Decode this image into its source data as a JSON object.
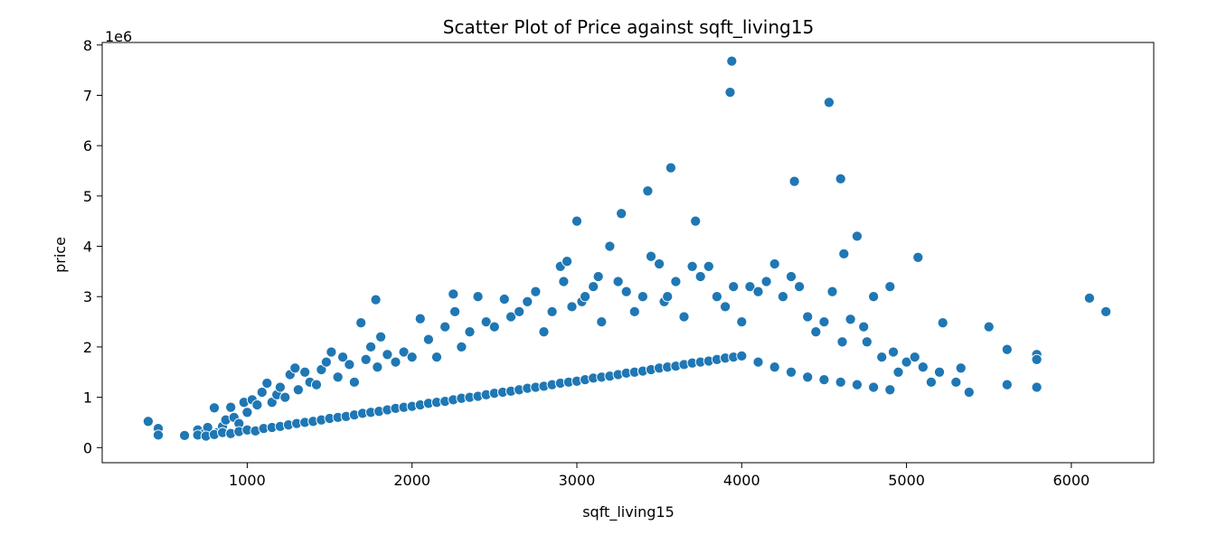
{
  "chart_data": {
    "type": "scatter",
    "title": "Scatter Plot of Price against  sqft_living15",
    "xlabel": "sqft_living15",
    "ylabel": "price",
    "y_offset_label": "1e6",
    "xlim": [
      120,
      6500
    ],
    "ylim": [
      -300000,
      8050000
    ],
    "x_ticks": [
      1000,
      2000,
      3000,
      4000,
      5000,
      6000
    ],
    "x_tick_labels": [
      "1000",
      "2000",
      "3000",
      "4000",
      "5000",
      "6000"
    ],
    "y_ticks": [
      0,
      1000000,
      2000000,
      3000000,
      4000000,
      5000000,
      6000000,
      7000000,
      8000000
    ],
    "y_tick_labels": [
      "0",
      "1",
      "2",
      "3",
      "4",
      "5",
      "6",
      "7",
      "8"
    ],
    "grid": false,
    "legend": "none",
    "marker_color": "#1f77b4",
    "points": {
      "x": [
        399,
        460,
        460,
        620,
        700,
        740,
        760,
        800,
        820,
        850,
        870,
        900,
        920,
        950,
        980,
        1000,
        1030,
        1060,
        1090,
        1120,
        1150,
        1180,
        1200,
        1230,
        1260,
        1290,
        1310,
        1350,
        1380,
        1420,
        1450,
        1480,
        1510,
        1550,
        1580,
        1620,
        1650,
        1690,
        1720,
        1750,
        1780,
        1790,
        1810,
        1850,
        1900,
        1950,
        2000,
        2050,
        2100,
        2150,
        2200,
        2250,
        2260,
        2300,
        2350,
        2400,
        2450,
        2500,
        2560,
        2600,
        2650,
        2700,
        2750,
        2800,
        2850,
        2900,
        2920,
        2940,
        2970,
        3000,
        3030,
        3050,
        3100,
        3130,
        3150,
        3200,
        3250,
        3270,
        3300,
        3350,
        3400,
        3430,
        3450,
        3500,
        3530,
        3550,
        3570,
        3600,
        3650,
        3700,
        3720,
        3750,
        3800,
        3850,
        3900,
        3930,
        3940,
        3950,
        4000,
        4050,
        4100,
        4150,
        4200,
        4250,
        4300,
        4320,
        4350,
        4400,
        4450,
        4500,
        4530,
        4550,
        4600,
        4610,
        4620,
        4660,
        4700,
        4740,
        4760,
        4800,
        4850,
        4900,
        4920,
        4950,
        5000,
        5050,
        5070,
        5100,
        5150,
        5200,
        5220,
        5300,
        5330,
        5380,
        5500,
        5610,
        5610,
        5790,
        5790,
        5790,
        6110,
        6210,
        700,
        750,
        800,
        850,
        900,
        950,
        1000,
        1050,
        1100,
        1150,
        1200,
        1250,
        1300,
        1350,
        1400,
        1450,
        1500,
        1550,
        1600,
        1650,
        1700,
        1750,
        1800,
        1850,
        1900,
        1950,
        2000,
        2050,
        2100,
        2150,
        2200,
        2250,
        2300,
        2350,
        2400,
        2450,
        2500,
        2550,
        2600,
        2650,
        2700,
        2750,
        2800,
        2850,
        2900,
        2950,
        3000,
        3050,
        3100,
        3150,
        3200,
        3250,
        3300,
        3350,
        3400,
        3450,
        3500,
        3550,
        3600,
        3650,
        3700,
        3750,
        3800,
        3850,
        3900,
        3950,
        4000,
        4100,
        4200,
        4300,
        4400,
        4500,
        4600,
        4700,
        4800,
        4900
      ],
      "y": [
        520000,
        380000,
        250000,
        240000,
        350000,
        280000,
        400000,
        790000,
        300000,
        420000,
        550000,
        800000,
        600000,
        480000,
        900000,
        700000,
        950000,
        850000,
        1100000,
        1280000,
        900000,
        1050000,
        1200000,
        1000000,
        1450000,
        1580000,
        1150000,
        1500000,
        1300000,
        1250000,
        1550000,
        1700000,
        1900000,
        1400000,
        1800000,
        1650000,
        1300000,
        2480000,
        1750000,
        2000000,
        2940000,
        1600000,
        2200000,
        1850000,
        1700000,
        1900000,
        1800000,
        2560000,
        2150000,
        1800000,
        2400000,
        3050000,
        2700000,
        2000000,
        2300000,
        3000000,
        2500000,
        2400000,
        2950000,
        2600000,
        2700000,
        2900000,
        3100000,
        2300000,
        2700000,
        3600000,
        3300000,
        3700000,
        2800000,
        4500000,
        2900000,
        3000000,
        3200000,
        3400000,
        2500000,
        4000000,
        3300000,
        4650000,
        3100000,
        2700000,
        3000000,
        5100000,
        3800000,
        3650000,
        2900000,
        3000000,
        5560000,
        3300000,
        2600000,
        3600000,
        4500000,
        3400000,
        3600000,
        3000000,
        2800000,
        7060000,
        7680000,
        3200000,
        2500000,
        3200000,
        3100000,
        3300000,
        3650000,
        3000000,
        3400000,
        5290000,
        3200000,
        2600000,
        2300000,
        2500000,
        6860000,
        3100000,
        5340000,
        2100000,
        3850000,
        2550000,
        4200000,
        2400000,
        2100000,
        3000000,
        1800000,
        3200000,
        1900000,
        1500000,
        1700000,
        1800000,
        3780000,
        1600000,
        1300000,
        1500000,
        2480000,
        1300000,
        1580000,
        1100000,
        2400000,
        1950000,
        1250000,
        1200000,
        1850000,
        1750000,
        2970000,
        2700000,
        250000,
        230000,
        260000,
        300000,
        280000,
        320000,
        350000,
        330000,
        380000,
        400000,
        420000,
        450000,
        480000,
        500000,
        520000,
        550000,
        580000,
        600000,
        620000,
        650000,
        680000,
        700000,
        720000,
        750000,
        780000,
        800000,
        820000,
        850000,
        880000,
        900000,
        920000,
        950000,
        980000,
        1000000,
        1020000,
        1050000,
        1080000,
        1100000,
        1120000,
        1150000,
        1180000,
        1200000,
        1220000,
        1250000,
        1280000,
        1300000,
        1320000,
        1350000,
        1380000,
        1400000,
        1420000,
        1450000,
        1480000,
        1500000,
        1520000,
        1550000,
        1580000,
        1600000,
        1620000,
        1650000,
        1680000,
        1700000,
        1720000,
        1750000,
        1780000,
        1800000,
        1820000,
        1700000,
        1600000,
        1500000,
        1400000,
        1350000,
        1300000,
        1250000,
        1200000,
        1150000
      ]
    }
  }
}
